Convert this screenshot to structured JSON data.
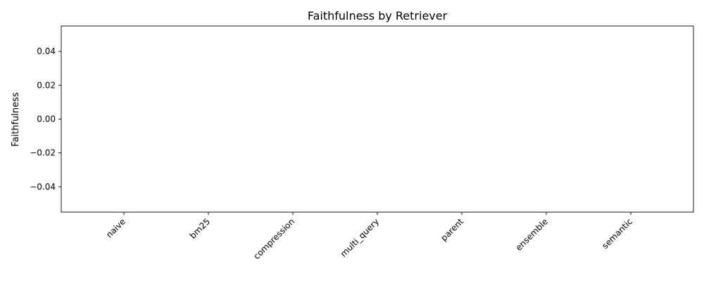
{
  "chart_data": {
    "type": "bar",
    "title": "Faithfulness by Retriever",
    "xlabel": "",
    "ylabel": "Faithfulness",
    "categories": [
      "naive",
      "bm25",
      "compression",
      "multi_query",
      "parent",
      "ensemble",
      "semantic"
    ],
    "values": [
      0,
      0,
      0,
      0,
      0,
      0,
      0
    ],
    "ylim": [
      -0.055,
      0.055
    ],
    "yticks": [
      -0.04,
      -0.02,
      0.0,
      0.02,
      0.04
    ],
    "ytick_labels": [
      "−0.04",
      "−0.02",
      "0.00",
      "0.02",
      "0.04"
    ],
    "grid": false,
    "legend": "none"
  }
}
